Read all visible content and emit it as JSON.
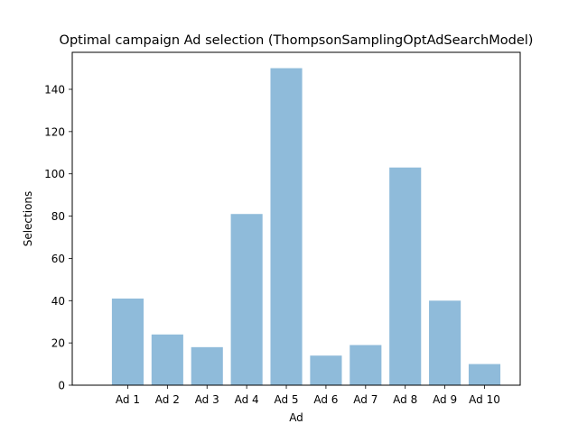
{
  "chart_data": {
    "type": "bar",
    "title": "Optimal campaign Ad selection (ThompsonSamplingOptAdSearchModel)",
    "xlabel": "Ad",
    "ylabel": "Selections",
    "categories": [
      "Ad 1",
      "Ad 2",
      "Ad 3",
      "Ad 4",
      "Ad 5",
      "Ad 6",
      "Ad 7",
      "Ad 8",
      "Ad 9",
      "Ad 10"
    ],
    "values": [
      41,
      24,
      18,
      81,
      150,
      14,
      19,
      103,
      40,
      10
    ],
    "ylim": [
      0,
      157.5
    ],
    "yticks": [
      0,
      20,
      40,
      60,
      80,
      100,
      120,
      140
    ],
    "grid": false,
    "bar_color": "#8fbbda"
  }
}
